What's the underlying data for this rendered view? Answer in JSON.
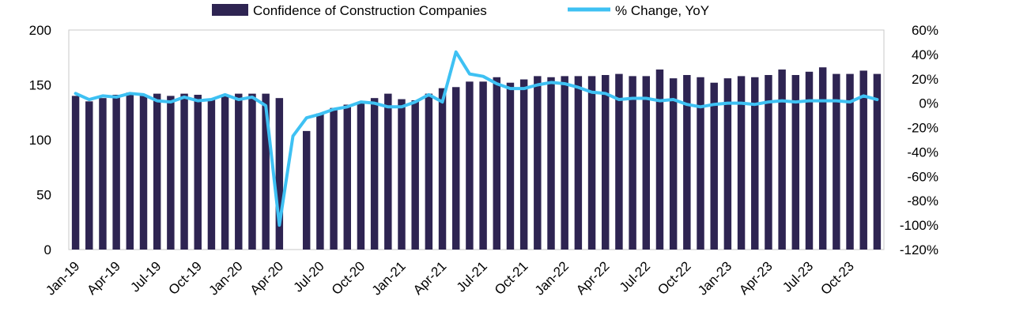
{
  "chart_data": {
    "type": "bar",
    "categories": [
      "Jan-19",
      "Feb-19",
      "Mar-19",
      "Apr-19",
      "May-19",
      "Jun-19",
      "Jul-19",
      "Aug-19",
      "Sep-19",
      "Oct-19",
      "Nov-19",
      "Dec-19",
      "Jan-20",
      "Feb-20",
      "Mar-20",
      "Apr-20",
      "May-20",
      "Jun-20",
      "Jul-20",
      "Aug-20",
      "Sep-20",
      "Oct-20",
      "Nov-20",
      "Dec-20",
      "Jan-21",
      "Feb-21",
      "Mar-21",
      "Apr-21",
      "May-21",
      "Jun-21",
      "Jul-21",
      "Aug-21",
      "Sep-21",
      "Oct-21",
      "Nov-21",
      "Dec-21",
      "Jan-22",
      "Feb-22",
      "Mar-22",
      "Apr-22",
      "May-22",
      "Jun-22",
      "Jul-22",
      "Aug-22",
      "Sep-22",
      "Oct-22",
      "Nov-22",
      "Dec-22",
      "Jan-23",
      "Feb-23",
      "Mar-23",
      "Apr-23",
      "May-23",
      "Jun-23",
      "Jul-23",
      "Aug-23",
      "Sep-23",
      "Oct-23",
      "Nov-23",
      "Dec-23"
    ],
    "x_tick_labels": [
      "Jan-19",
      "Apr-19",
      "Jul-19",
      "Oct-19",
      "Jan-20",
      "Apr-20",
      "Jul-20",
      "Oct-20",
      "Jan-21",
      "Apr-21",
      "Jul-21",
      "Oct-21",
      "Jan-22",
      "Apr-22",
      "Jul-22",
      "Oct-22",
      "Jan-23",
      "Apr-23",
      "Jul-23",
      "Oct-23"
    ],
    "series": [
      {
        "name": "Confidence of Construction Companies",
        "kind": "bar",
        "axis": "left",
        "color": "#2e2452",
        "values": [
          140,
          135,
          138,
          141,
          143,
          141,
          142,
          140,
          142,
          141,
          137,
          140,
          142,
          142,
          142,
          138,
          0,
          108,
          124,
          129,
          132,
          134,
          138,
          142,
          137,
          136,
          142,
          147,
          148,
          153,
          153,
          157,
          152,
          155,
          158,
          157,
          158,
          158,
          158,
          159,
          160,
          158,
          158,
          164,
          156,
          159,
          157,
          152,
          156,
          158,
          157,
          159,
          164,
          159,
          162,
          166,
          160,
          160,
          163,
          160
        ]
      },
      {
        "name": "% Change, YoY",
        "kind": "line",
        "axis": "right",
        "color": "#3ec1f3",
        "values": [
          8,
          3,
          6,
          5,
          8,
          7,
          2,
          1,
          5,
          2,
          3,
          7,
          3,
          5,
          -2,
          -100,
          -27,
          -12,
          -9,
          -5,
          -3,
          1,
          0,
          -3,
          -3,
          1,
          7,
          1,
          42,
          24,
          22,
          16,
          12,
          12,
          15,
          17,
          16,
          13,
          9,
          8,
          3,
          4,
          4,
          2,
          3,
          -1,
          -3,
          -1,
          0,
          0,
          -1,
          1,
          2,
          1,
          2,
          2,
          2,
          1,
          6,
          3
        ]
      }
    ],
    "y_left": {
      "min": 0,
      "max": 200,
      "ticks": [
        "0",
        "50",
        "100",
        "150",
        "200"
      ]
    },
    "y_right": {
      "min": -120,
      "max": 60,
      "ticks": [
        "-120%",
        "-100%",
        "-80%",
        "-60%",
        "-40%",
        "-20%",
        "0%",
        "20%",
        "40%",
        "60%"
      ]
    },
    "legend_position": "top",
    "grid": false
  }
}
